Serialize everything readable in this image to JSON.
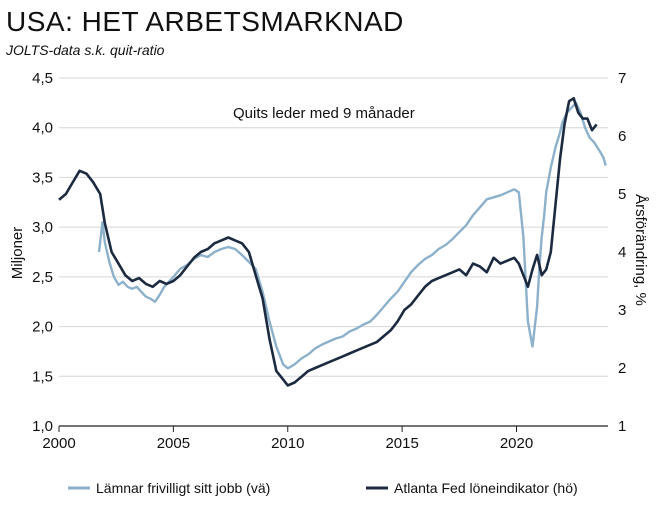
{
  "header": {
    "title": "USA:  HET ARBETSMARKNAD",
    "subtitle": "JOLTS-data s.k. quit-ratio"
  },
  "colors": {
    "quits": "#8db1cb",
    "wage": "#1c2a40",
    "grid": "#d6d6d6",
    "axis": "#222222"
  },
  "chart_data": {
    "type": "line",
    "title": "USA:  HET ARBETSMARKNAD",
    "subtitle": "JOLTS-data s.k. quit-ratio",
    "annotation": "Quits leder med 9 månader",
    "xlabel": "",
    "ylabel_left": "Miljoner",
    "ylabel_right": "Årsförändring, %",
    "xlim": [
      2000,
      2024
    ],
    "ylim_left": [
      1.0,
      4.5
    ],
    "ylim_right": [
      1,
      7
    ],
    "x_ticks": [
      "2000",
      "2005",
      "2010",
      "2015",
      "2020"
    ],
    "y_left_ticks": [
      "1,0",
      "1,5",
      "2,0",
      "2,5",
      "3,0",
      "3,5",
      "4,0",
      "4,5"
    ],
    "y_right_ticks": [
      "1",
      "2",
      "3",
      "4",
      "5",
      "6",
      "7"
    ],
    "grid": true,
    "legend_position": "bottom",
    "series": [
      {
        "name": "Lämnar frivilligt sitt jobb (vä)",
        "axis": "left",
        "color": "#8db1cb",
        "x": [
          2001.75,
          2001.9,
          2002.0,
          2002.2,
          2002.4,
          2002.6,
          2002.8,
          2003.0,
          2003.2,
          2003.4,
          2003.6,
          2003.8,
          2004.0,
          2004.2,
          2004.4,
          2004.6,
          2004.8,
          2005.0,
          2005.3,
          2005.6,
          2005.9,
          2006.2,
          2006.5,
          2006.8,
          2007.1,
          2007.4,
          2007.7,
          2008.0,
          2008.3,
          2008.6,
          2008.9,
          2009.2,
          2009.5,
          2009.8,
          2010.0,
          2010.3,
          2010.6,
          2010.9,
          2011.2,
          2011.5,
          2011.8,
          2012.1,
          2012.4,
          2012.7,
          2013.0,
          2013.3,
          2013.6,
          2013.9,
          2014.2,
          2014.5,
          2014.8,
          2015.1,
          2015.4,
          2015.7,
          2016.0,
          2016.3,
          2016.6,
          2016.9,
          2017.2,
          2017.5,
          2017.8,
          2018.1,
          2018.4,
          2018.7,
          2019.0,
          2019.3,
          2019.6,
          2019.9,
          2020.1,
          2020.3,
          2020.5,
          2020.7,
          2020.9,
          2021.0,
          2021.1,
          2021.2,
          2021.3,
          2021.5,
          2021.7,
          2021.9,
          2022.0,
          2022.2,
          2022.4,
          2022.6,
          2022.8,
          2023.0,
          2023.2,
          2023.4,
          2023.6,
          2023.8,
          2023.9
        ],
        "y": [
          2.75,
          3.05,
          2.85,
          2.65,
          2.5,
          2.42,
          2.45,
          2.4,
          2.38,
          2.4,
          2.35,
          2.3,
          2.28,
          2.25,
          2.32,
          2.4,
          2.45,
          2.5,
          2.58,
          2.62,
          2.68,
          2.72,
          2.7,
          2.75,
          2.78,
          2.8,
          2.78,
          2.72,
          2.65,
          2.58,
          2.35,
          2.05,
          1.8,
          1.62,
          1.58,
          1.62,
          1.68,
          1.72,
          1.78,
          1.82,
          1.85,
          1.88,
          1.9,
          1.95,
          1.98,
          2.02,
          2.05,
          2.12,
          2.2,
          2.28,
          2.35,
          2.45,
          2.55,
          2.62,
          2.68,
          2.72,
          2.78,
          2.82,
          2.88,
          2.95,
          3.02,
          3.12,
          3.2,
          3.28,
          3.3,
          3.32,
          3.35,
          3.38,
          3.35,
          2.9,
          2.05,
          1.8,
          2.2,
          2.6,
          2.9,
          3.1,
          3.35,
          3.6,
          3.8,
          3.95,
          4.05,
          4.15,
          4.2,
          4.25,
          4.15,
          4.0,
          3.9,
          3.85,
          3.78,
          3.7,
          3.62
        ]
      },
      {
        "name": "Atlanta Fed löneindikator (hö)",
        "axis": "right",
        "color": "#1c2a40",
        "x": [
          2000.0,
          2000.3,
          2000.6,
          2000.9,
          2001.2,
          2001.5,
          2001.8,
          2002.0,
          2002.3,
          2002.6,
          2002.9,
          2003.2,
          2003.5,
          2003.8,
          2004.1,
          2004.4,
          2004.7,
          2005.0,
          2005.3,
          2005.6,
          2005.9,
          2006.2,
          2006.5,
          2006.8,
          2007.1,
          2007.4,
          2007.7,
          2008.0,
          2008.3,
          2008.6,
          2008.9,
          2009.2,
          2009.5,
          2009.8,
          2010.0,
          2010.3,
          2010.6,
          2010.9,
          2011.2,
          2011.5,
          2011.8,
          2012.1,
          2012.4,
          2012.7,
          2013.0,
          2013.3,
          2013.6,
          2013.9,
          2014.2,
          2014.5,
          2014.8,
          2015.1,
          2015.4,
          2015.7,
          2016.0,
          2016.3,
          2016.6,
          2016.9,
          2017.2,
          2017.5,
          2017.8,
          2018.1,
          2018.4,
          2018.7,
          2019.0,
          2019.3,
          2019.6,
          2019.9,
          2020.1,
          2020.3,
          2020.5,
          2020.7,
          2020.9,
          2021.1,
          2021.3,
          2021.5,
          2021.7,
          2021.9,
          2022.1,
          2022.3,
          2022.5,
          2022.7,
          2022.9,
          2023.1,
          2023.3,
          2023.5
        ],
        "y": [
          4.9,
          5.0,
          5.2,
          5.4,
          5.35,
          5.2,
          5.0,
          4.5,
          4.0,
          3.8,
          3.6,
          3.5,
          3.55,
          3.45,
          3.4,
          3.5,
          3.45,
          3.5,
          3.6,
          3.75,
          3.9,
          4.0,
          4.05,
          4.15,
          4.2,
          4.25,
          4.2,
          4.15,
          4.0,
          3.6,
          3.2,
          2.5,
          1.95,
          1.8,
          1.7,
          1.75,
          1.85,
          1.95,
          2.0,
          2.05,
          2.1,
          2.15,
          2.2,
          2.25,
          2.3,
          2.35,
          2.4,
          2.45,
          2.55,
          2.65,
          2.8,
          3.0,
          3.1,
          3.25,
          3.4,
          3.5,
          3.55,
          3.6,
          3.65,
          3.7,
          3.6,
          3.8,
          3.75,
          3.65,
          3.9,
          3.8,
          3.85,
          3.9,
          3.8,
          3.6,
          3.4,
          3.7,
          3.95,
          3.6,
          3.7,
          4.0,
          4.8,
          5.6,
          6.2,
          6.6,
          6.65,
          6.4,
          6.3,
          6.3,
          6.1,
          6.2
        ]
      }
    ]
  }
}
